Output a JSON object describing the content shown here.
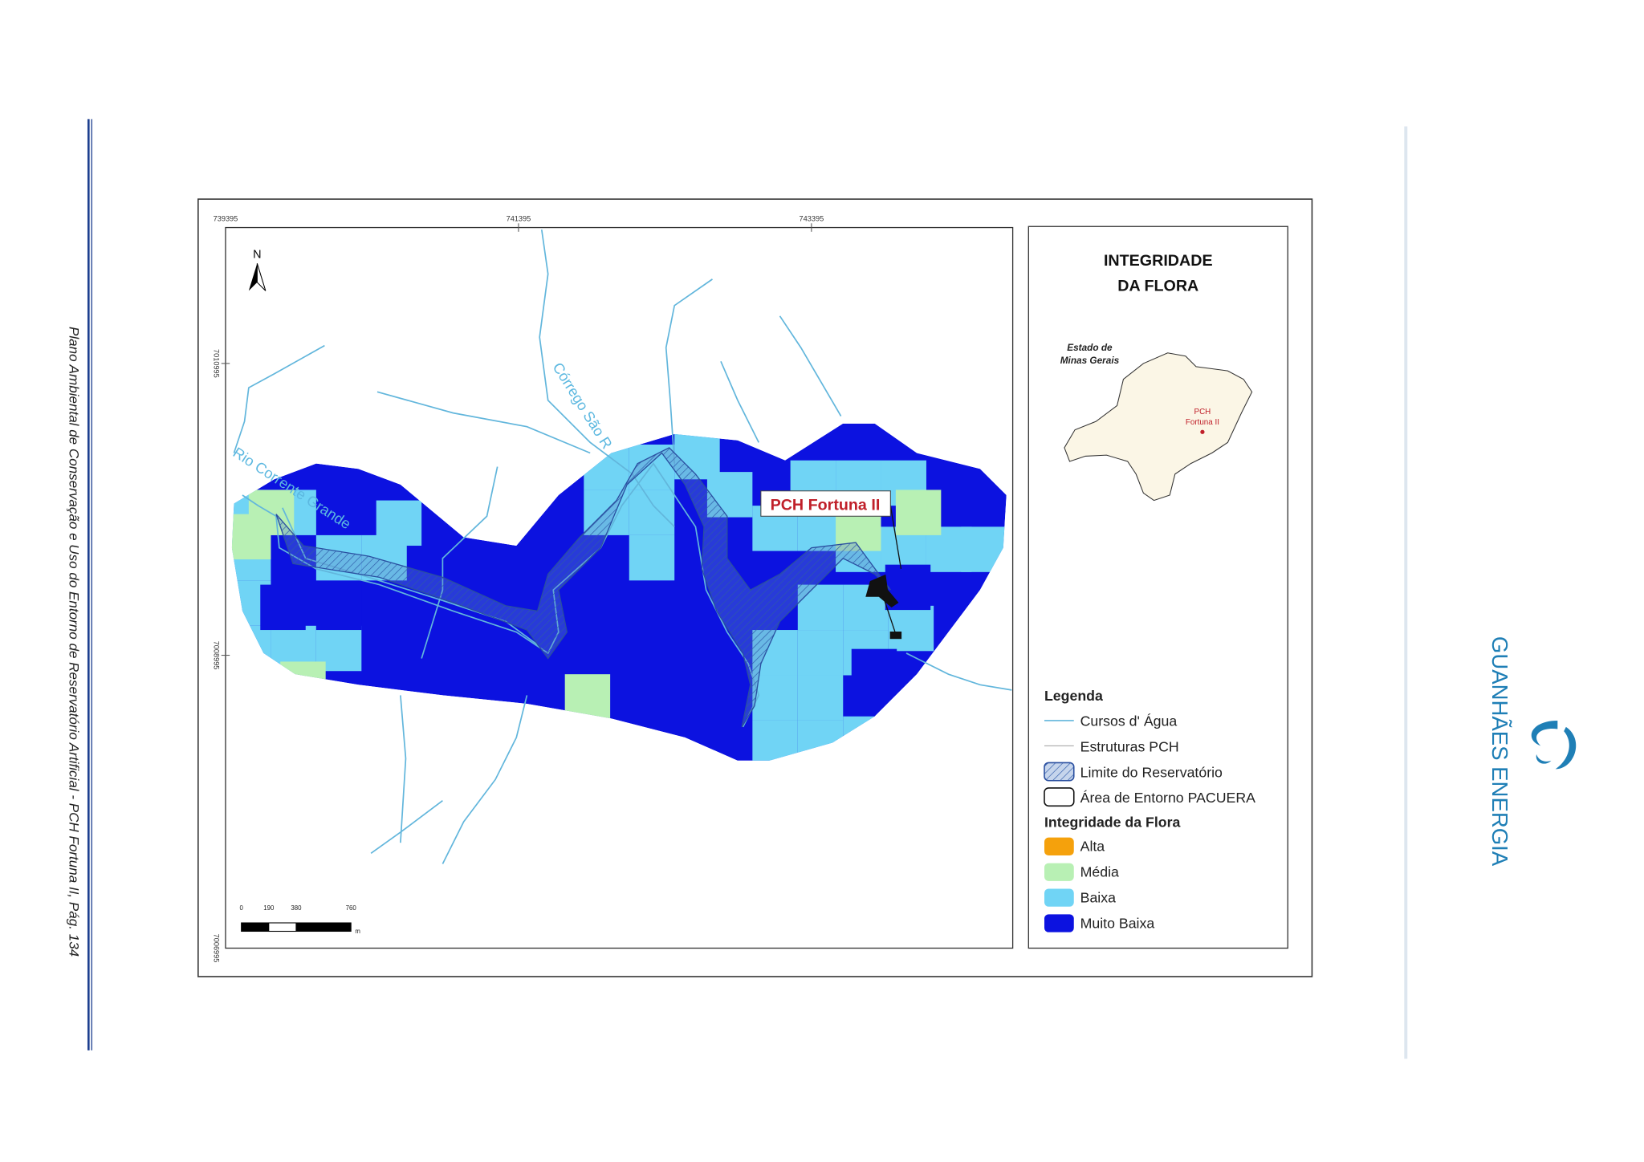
{
  "header": {
    "side_text": "Plano Ambiental de Conservação e Uso do Entorno de Reservatório Artificial - PCH Fortuna II, Pág. 134"
  },
  "logo": {
    "text": "GUANHÃES ENERGIA"
  },
  "map": {
    "coords_top": [
      "739395",
      "741395",
      "743395"
    ],
    "coords_left": [
      "7010995",
      "7008995",
      "7006995"
    ],
    "north": "N",
    "river_labels": [
      "Córrego São R",
      "Rio Corrente Grande"
    ],
    "plant_label": "PCH Fortuna II",
    "scale": {
      "labels": [
        "0",
        "190",
        "380",
        "760"
      ],
      "unit": "m"
    }
  },
  "legend": {
    "title": [
      "INTEGRIDADE",
      "DA FLORA"
    ],
    "inset": {
      "state": [
        "Estado de",
        "Minas Gerais"
      ],
      "plant": [
        "PCH",
        "Fortuna II"
      ]
    },
    "heading": "Legenda",
    "items": [
      "Cursos d' Água",
      "Estruturas PCH",
      "Limite do Reservatório",
      "Área de Entorno PACUERA"
    ],
    "flora_heading": "Integridade da Flora",
    "classes": [
      {
        "label": "Alta",
        "color": "#f5a10c"
      },
      {
        "label": "Média",
        "color": "#b8f0b4"
      },
      {
        "label": "Baixa",
        "color": "#70d4f5"
      },
      {
        "label": "Muito Baixa",
        "color": "#0c12e0"
      }
    ]
  }
}
